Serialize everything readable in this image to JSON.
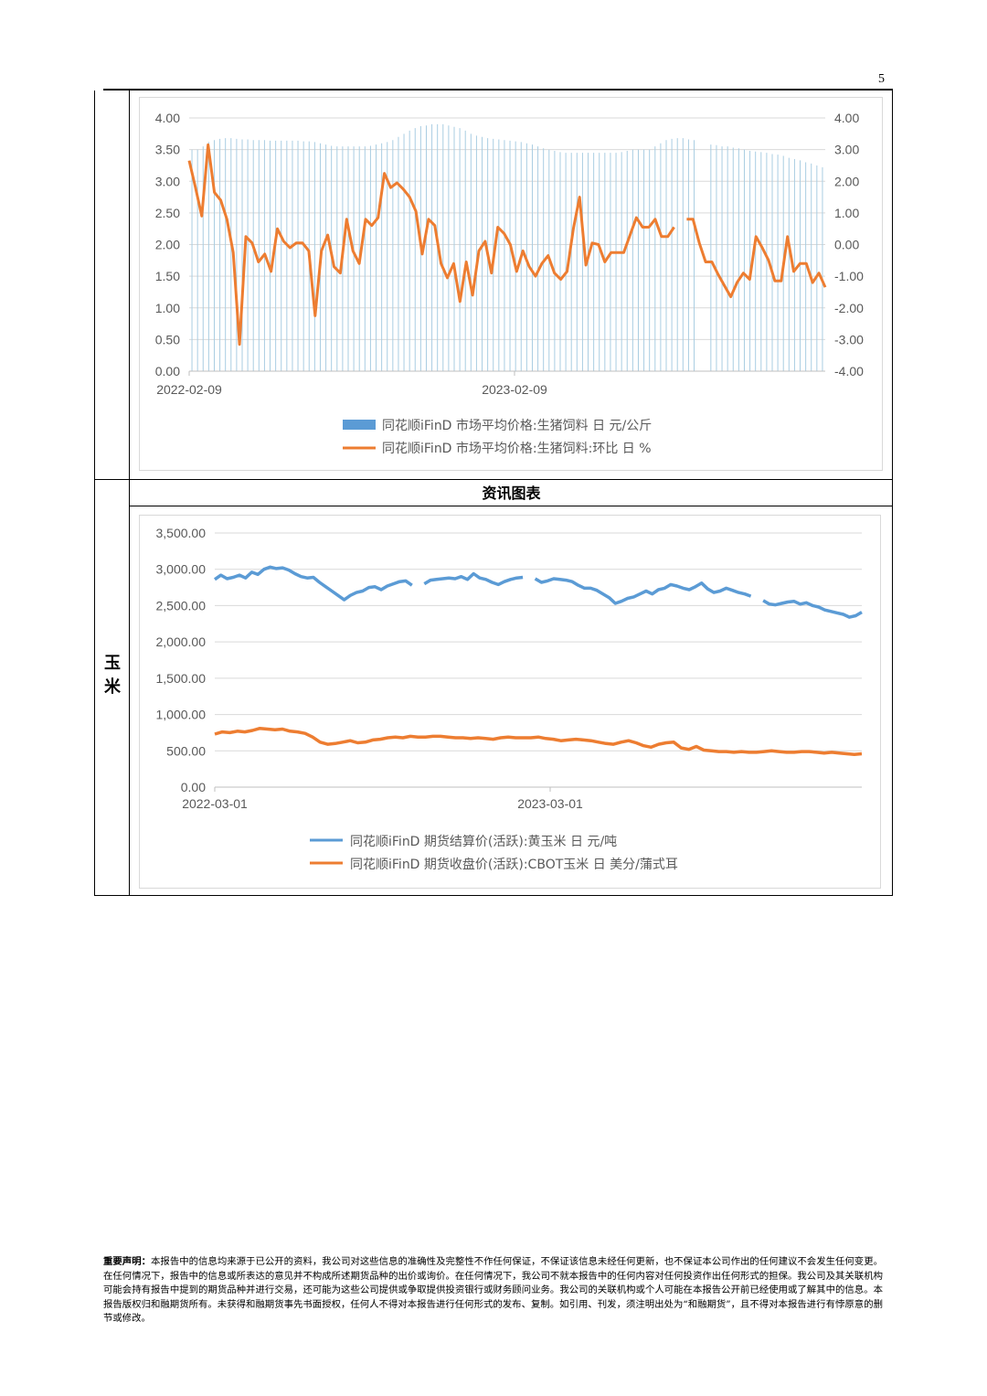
{
  "page": {
    "number": "5",
    "section_title": "资讯图表",
    "corn_label": "玉米"
  },
  "chart_data": [
    {
      "type": "bar+line",
      "title": "",
      "x_ticks": [
        "2022-02-09",
        "2023-02-09"
      ],
      "left_axis": {
        "ticks": [
          "0.00",
          "0.50",
          "1.00",
          "1.50",
          "2.00",
          "2.50",
          "3.00",
          "3.50",
          "4.00"
        ],
        "range": [
          0,
          4
        ]
      },
      "right_axis": {
        "ticks": [
          "-4.00",
          "-3.00",
          "-2.00",
          "-1.00",
          "0.00",
          "1.00",
          "2.00",
          "3.00",
          "4.00"
        ],
        "range": [
          -4,
          4
        ]
      },
      "legend_position": "bottom",
      "series": [
        {
          "name": "同花顺iFinD 市场平均价格:生猪饲料 日 元/公斤",
          "kind": "bar",
          "axis": "left",
          "color": "#a9cde2",
          "values": [
            3.5,
            3.5,
            3.55,
            3.62,
            3.65,
            3.67,
            3.68,
            3.68,
            3.67,
            3.66,
            3.66,
            3.65,
            3.65,
            3.65,
            3.64,
            3.64,
            3.64,
            3.64,
            3.64,
            3.64,
            3.63,
            3.63,
            3.62,
            3.6,
            3.58,
            3.56,
            3.55,
            3.55,
            3.55,
            3.55,
            3.55,
            3.55,
            3.56,
            3.58,
            3.6,
            3.62,
            3.65,
            3.7,
            3.75,
            3.8,
            3.84,
            3.87,
            3.88,
            3.9,
            3.9,
            3.9,
            3.88,
            3.86,
            3.84,
            3.8,
            3.75,
            3.72,
            3.7,
            3.68,
            3.67,
            3.66,
            3.65,
            3.64,
            3.63,
            3.62,
            3.6,
            3.58,
            3.55,
            3.52,
            3.5,
            3.48,
            3.46,
            3.45,
            3.45,
            3.45,
            3.45,
            3.45,
            3.45,
            3.45,
            3.45,
            3.45,
            3.45,
            3.46,
            3.48,
            3.5,
            3.5,
            3.5,
            3.5,
            3.55,
            3.6,
            3.65,
            3.67,
            3.68,
            3.68,
            3.66,
            3.65,
            0,
            0,
            3.58,
            3.57,
            3.55,
            3.55,
            3.53,
            3.52,
            3.5,
            3.48,
            3.47,
            3.46,
            3.45,
            3.43,
            3.42,
            3.4,
            3.37,
            3.35,
            3.33,
            3.3,
            3.28,
            3.25,
            3.22
          ]
        },
        {
          "name": "同花顺iFinD 市场平均价格:生猪饲料:环比 日 %",
          "kind": "line",
          "axis": "right",
          "color": "#ed7d31",
          "values": [
            2.65,
            1.8,
            0.9,
            3.15,
            1.65,
            1.4,
            0.8,
            -0.25,
            -3.15,
            0.25,
            0.05,
            -0.55,
            -0.3,
            -0.85,
            0.5,
            0.1,
            -0.1,
            0.05,
            0.05,
            -0.2,
            -2.25,
            -0.2,
            0.3,
            -0.7,
            -0.9,
            0.8,
            -0.2,
            -0.6,
            0.8,
            0.6,
            0.85,
            2.25,
            1.8,
            1.95,
            1.75,
            1.5,
            1.05,
            -0.3,
            0.8,
            0.6,
            -0.6,
            -1.05,
            -0.6,
            -1.8,
            -0.55,
            -1.6,
            -0.2,
            0.1,
            -0.9,
            0.55,
            0.35,
            0.0,
            -0.85,
            -0.2,
            -0.7,
            -1.0,
            -0.6,
            -0.35,
            -0.9,
            -1.1,
            -0.85,
            0.5,
            1.5,
            -0.65,
            0.05,
            0.0,
            -0.55,
            -0.25,
            -0.25,
            -0.25,
            0.3,
            0.85,
            0.55,
            0.55,
            0.8,
            0.25,
            0.25,
            0.55,
            null,
            0.8,
            0.8,
            0.05,
            -0.55,
            -0.55,
            -0.95,
            -1.3,
            -1.65,
            -1.2,
            -0.9,
            -1.1,
            0.25,
            -0.1,
            -0.5,
            -1.15,
            -1.15,
            0.25,
            -0.85,
            -0.6,
            -0.6,
            -1.2,
            -0.9,
            -1.35
          ]
        }
      ]
    },
    {
      "type": "line",
      "title": "",
      "x_ticks": [
        "2022-03-01",
        "2023-03-01"
      ],
      "y_axis": {
        "ticks": [
          "0.00",
          "500.00",
          "1,000.00",
          "1,500.00",
          "2,000.00",
          "2,500.00",
          "3,000.00",
          "3,500.00"
        ],
        "range": [
          0,
          3500
        ]
      },
      "legend_position": "bottom",
      "series": [
        {
          "name": "同花顺iFinD 期货结算价(活跃):黄玉米 日 元/吨",
          "color": "#5b9bd5",
          "values": [
            2860,
            2920,
            2870,
            2890,
            2920,
            2880,
            2960,
            2930,
            3000,
            3030,
            3010,
            3020,
            2990,
            2940,
            2900,
            2880,
            2890,
            2820,
            2760,
            2700,
            2640,
            2580,
            2640,
            2680,
            2700,
            2750,
            2760,
            2720,
            2770,
            2800,
            2830,
            2840,
            2780,
            null,
            2800,
            2850,
            2860,
            2870,
            2880,
            2870,
            2900,
            2860,
            2940,
            2880,
            2860,
            2820,
            2790,
            2830,
            2860,
            2880,
            2890,
            null,
            2870,
            2820,
            2840,
            2870,
            2860,
            2850,
            2830,
            2780,
            2740,
            2740,
            2710,
            2660,
            2610,
            2530,
            2560,
            2600,
            2620,
            2660,
            2700,
            2660,
            2720,
            2740,
            2790,
            2770,
            2740,
            2720,
            2760,
            2810,
            2730,
            2680,
            2700,
            2740,
            2710,
            2680,
            2660,
            2630,
            null,
            2570,
            2520,
            2510,
            2530,
            2550,
            2560,
            2520,
            2540,
            2500,
            2480,
            2440,
            2420,
            2400,
            2380,
            2340,
            2360,
            2410
          ]
        },
        {
          "name": "同花顺iFinD 期货收盘价(活跃):CBOT玉米 日 美分/蒲式耳",
          "color": "#ed7d31",
          "values": [
            730,
            760,
            750,
            770,
            760,
            780,
            810,
            800,
            790,
            800,
            770,
            760,
            740,
            690,
            620,
            590,
            600,
            620,
            640,
            610,
            620,
            650,
            660,
            680,
            690,
            680,
            700,
            690,
            690,
            700,
            700,
            690,
            680,
            680,
            670,
            680,
            670,
            660,
            680,
            690,
            680,
            680,
            680,
            690,
            670,
            660,
            640,
            650,
            660,
            650,
            640,
            620,
            600,
            590,
            620,
            640,
            610,
            570,
            550,
            590,
            610,
            620,
            540,
            520,
            560,
            510,
            500,
            490,
            490,
            480,
            490,
            480,
            480,
            490,
            500,
            490,
            480,
            480,
            490,
            490,
            480,
            470,
            480,
            470,
            460,
            450,
            460
          ]
        }
      ]
    }
  ],
  "disclaimer": {
    "title": "重要声明：",
    "body": "本报告中的信息均来源于已公开的资料，我公司对这些信息的准确性及完整性不作任何保证，不保证该信息未经任何更新，也不保证本公司作出的任何建议不会发生任何变更。在任何情况下，报告中的信息或所表达的意见并不构成所述期货品种的出价或询价。在任何情况下，我公司不就本报告中的任何内容对任何投资作出任何形式的担保。我公司及其关联机构可能会持有报告中提到的期货品种并进行交易，还可能为这些公司提供或争取提供投资银行或财务顾问业务。我公司的关联机构或个人可能在本报告公开前已经使用或了解其中的信息。本报告版权归和融期货所有。未获得和融期货事先书面授权，任何人不得对本报告进行任何形式的发布、复制。如引用、刊发，须注明出处为“和融期货”，且不得对本报告进行有悖原意的删节或修改。"
  }
}
